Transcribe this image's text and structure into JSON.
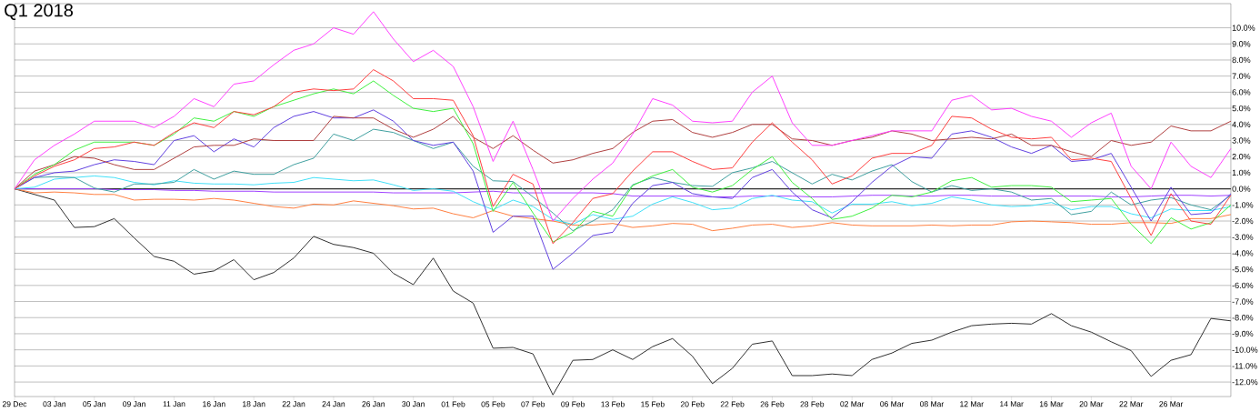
{
  "chart_data": {
    "type": "line",
    "title": "Q1 2018",
    "categories": [
      "29 Dec",
      null,
      "03 Jan",
      null,
      "05 Jan",
      null,
      "09 Jan",
      null,
      "11 Jan",
      null,
      "16 Jan",
      null,
      "18 Jan",
      null,
      "22 Jan",
      null,
      "24 Jan",
      null,
      "26 Jan",
      null,
      "30 Jan",
      null,
      "01 Feb",
      null,
      "05 Feb",
      null,
      "07 Feb",
      null,
      "09 Feb",
      null,
      "13 Feb",
      null,
      "15 Feb",
      null,
      "20 Feb",
      null,
      "22 Feb",
      null,
      "26 Feb",
      null,
      "28 Feb",
      null,
      "02 Mar",
      null,
      "06 Mar",
      null,
      "08 Mar",
      null,
      "12 Mar",
      null,
      "14 Mar",
      null,
      "16 Mar",
      null,
      "20 Mar",
      null,
      "22 Mar",
      null,
      "26 Mar",
      null,
      null,
      null
    ],
    "series": [
      {
        "color": "#303030",
        "values": [
          0,
          -0.35,
          -0.7,
          -2.4,
          -2.35,
          -1.85,
          -3.05,
          -4.2,
          -4.5,
          -5.3,
          -5.1,
          -4.4,
          -5.65,
          -5.2,
          -4.3,
          -2.95,
          -3.45,
          -3.65,
          -4.0,
          -5.25,
          -5.95,
          -4.3,
          -6.35,
          -7.1,
          -9.9,
          -9.85,
          -10.25,
          -12.8,
          -10.65,
          -10.6,
          -10.0,
          -10.6,
          -9.8,
          -9.3,
          -10.4,
          -12.1,
          -11.15,
          -9.65,
          -9.45,
          -11.6,
          -11.6,
          -11.5,
          -11.6,
          -10.6,
          -10.2,
          -9.6,
          -9.4,
          -8.9,
          -8.5,
          -8.4,
          -8.35,
          -8.4,
          -7.75,
          -8.5,
          -8.9,
          -9.5,
          -10.05,
          -11.65,
          -10.65,
          -10.3,
          -8.05,
          -8.2
        ]
      },
      {
        "color": "#ff8040",
        "values": [
          0,
          -0.25,
          -0.2,
          -0.25,
          -0.35,
          -0.35,
          -0.7,
          -0.65,
          -0.65,
          -0.7,
          -0.6,
          -0.7,
          -0.9,
          -1.1,
          -1.2,
          -0.95,
          -1.0,
          -0.75,
          -0.9,
          -1.05,
          -1.25,
          -1.2,
          -1.55,
          -1.8,
          -1.35,
          -1.7,
          -1.85,
          -2.0,
          -2.25,
          -2.25,
          -2.15,
          -2.4,
          -2.3,
          -2.15,
          -2.2,
          -2.6,
          -2.45,
          -2.25,
          -2.2,
          -2.4,
          -2.3,
          -2.1,
          -2.25,
          -2.3,
          -2.3,
          -2.3,
          -2.25,
          -2.3,
          -2.25,
          -2.25,
          -2.05,
          -2.0,
          -2.05,
          -2.1,
          -2.2,
          -2.2,
          -2.1,
          -2.1,
          -2.15,
          -1.85,
          -1.85,
          -1.6
        ]
      },
      {
        "color": "#a040ff",
        "values": [
          0,
          0,
          0,
          0,
          0,
          -0.05,
          -0.05,
          -0.05,
          -0.1,
          -0.1,
          -0.15,
          -0.15,
          -0.15,
          -0.2,
          -0.2,
          -0.2,
          -0.2,
          -0.2,
          -0.2,
          -0.25,
          -0.25,
          -0.25,
          -0.25,
          -0.2,
          -0.15,
          -0.25,
          -0.25,
          -0.25,
          -0.25,
          -0.25,
          -0.3,
          -0.45,
          -0.45,
          -0.45,
          -0.45,
          -0.5,
          -0.5,
          -0.45,
          -0.45,
          -0.45,
          -0.5,
          -0.5,
          -0.45,
          -0.4,
          -0.4,
          -0.45,
          -0.45,
          -0.4,
          -0.4,
          -0.45,
          -0.45,
          -0.45,
          -0.45,
          -0.45,
          -0.45,
          -0.5,
          -0.5,
          -0.45,
          -0.4,
          -0.4,
          -0.45,
          -0.4
        ]
      },
      {
        "color": "#40e0f8",
        "values": [
          0,
          0.1,
          0.6,
          0.7,
          0.8,
          0.7,
          0.4,
          0.25,
          0.5,
          0.35,
          0.3,
          0.3,
          0.25,
          0.35,
          0.4,
          0.7,
          0.6,
          0.5,
          0.55,
          0.25,
          -0.1,
          0.0,
          -0.15,
          -0.8,
          -1.3,
          -0.7,
          -1.1,
          -1.9,
          -2.2,
          -1.6,
          -1.9,
          -1.7,
          -0.95,
          -0.5,
          -0.85,
          -1.3,
          -1.2,
          -0.6,
          -0.4,
          -0.7,
          -0.8,
          -1.5,
          -0.95,
          -0.95,
          -0.8,
          -1.05,
          -0.9,
          -0.5,
          -0.7,
          -1.0,
          -1.1,
          -1.05,
          -0.85,
          -1.3,
          -1.1,
          -1.1,
          -1.55,
          -1.8,
          -1.25,
          -1.35,
          -1.35,
          -1.1
        ]
      },
      {
        "color": "#40a0a0",
        "values": [
          0,
          0.7,
          0.75,
          0.7,
          0.05,
          -0.2,
          0.3,
          0.3,
          0.4,
          1.2,
          0.6,
          1.1,
          0.9,
          0.9,
          1.5,
          1.9,
          3.4,
          3.0,
          3.7,
          3.5,
          3.0,
          2.5,
          2.9,
          1.4,
          0.5,
          0.45,
          -0.5,
          -1.5,
          -2.6,
          -2.0,
          -1.3,
          0.25,
          0.7,
          0.4,
          0.2,
          0.15,
          1.0,
          1.3,
          1.7,
          1.0,
          0.3,
          0.9,
          0.55,
          1.1,
          1.5,
          0.45,
          -0.2,
          0.2,
          -0.1,
          0.0,
          -0.2,
          -0.7,
          -0.6,
          -1.6,
          -1.4,
          -0.2,
          -1.0,
          -0.7,
          -0.55,
          -1.0,
          -1.3,
          -0.4
        ]
      },
      {
        "color": "#6040e0",
        "values": [
          0,
          0.7,
          1.0,
          1.1,
          1.5,
          1.8,
          1.7,
          1.5,
          3.0,
          3.3,
          2.3,
          3.1,
          2.6,
          3.8,
          4.5,
          4.8,
          4.4,
          4.4,
          4.9,
          4.2,
          3.0,
          2.7,
          2.9,
          1.1,
          -2.7,
          -1.7,
          -1.7,
          -5.0,
          -4.0,
          -2.9,
          -2.7,
          -0.9,
          0.2,
          0.4,
          -0.3,
          -0.5,
          -0.6,
          0.7,
          1.2,
          -0.2,
          -1.3,
          -1.8,
          -0.8,
          0.4,
          1.4,
          2.0,
          1.9,
          3.4,
          3.6,
          3.2,
          2.6,
          2.2,
          2.7,
          1.7,
          1.8,
          2.2,
          0.1,
          -2.0,
          0.1,
          -1.6,
          -1.5,
          -0.3
        ]
      },
      {
        "color": "#b04040",
        "values": [
          0,
          1.1,
          1.5,
          2.0,
          1.9,
          1.5,
          1.2,
          1.2,
          1.9,
          2.6,
          2.7,
          2.7,
          3.1,
          3.0,
          3.0,
          3.0,
          4.5,
          4.4,
          4.4,
          3.7,
          3.2,
          3.7,
          4.5,
          3.2,
          2.5,
          3.3,
          2.4,
          1.6,
          1.8,
          2.2,
          2.5,
          3.5,
          4.2,
          4.3,
          3.5,
          3.2,
          3.5,
          4.0,
          4.0,
          3.1,
          3.0,
          2.7,
          3.0,
          3.2,
          3.6,
          3.4,
          3.0,
          3.1,
          3.2,
          3.1,
          3.4,
          2.7,
          2.7,
          2.3,
          2.0,
          3.0,
          2.7,
          2.9,
          3.9,
          3.6,
          3.6,
          4.2
        ]
      },
      {
        "color": "#40f040",
        "values": [
          0,
          0.9,
          1.5,
          2.4,
          2.9,
          2.9,
          2.9,
          2.7,
          3.4,
          4.4,
          4.2,
          4.8,
          4.5,
          5.1,
          5.5,
          5.9,
          6.2,
          5.9,
          6.7,
          5.8,
          5.0,
          4.8,
          5.0,
          2.8,
          -1.4,
          0.4,
          -1.5,
          -3.3,
          -2.7,
          -1.4,
          -1.7,
          0.2,
          0.8,
          1.2,
          0.1,
          -0.2,
          0.2,
          1.2,
          2.0,
          0.4,
          -0.6,
          -1.9,
          -1.7,
          -1.2,
          -0.4,
          -0.5,
          -0.2,
          0.5,
          0.7,
          0.1,
          0.2,
          0.2,
          0.1,
          -0.8,
          -0.7,
          -0.6,
          -2.2,
          -3.4,
          -1.8,
          -2.5,
          -2.1,
          -1.0
        ]
      },
      {
        "color": "#ff4040",
        "values": [
          0,
          0.8,
          1.4,
          1.8,
          2.5,
          2.6,
          2.9,
          2.7,
          3.5,
          4.1,
          3.8,
          4.8,
          4.6,
          5.1,
          6.0,
          6.2,
          6.1,
          6.2,
          7.4,
          6.7,
          5.6,
          5.6,
          5.5,
          3.3,
          -1.1,
          0.9,
          0.3,
          -3.4,
          -2.1,
          -0.6,
          -0.3,
          1.1,
          2.3,
          2.3,
          1.7,
          1.2,
          1.3,
          2.9,
          4.1,
          2.9,
          1.8,
          0.3,
          0.8,
          1.9,
          2.2,
          2.2,
          2.7,
          4.5,
          4.4,
          3.7,
          3.2,
          3.1,
          3.2,
          1.8,
          1.9,
          1.7,
          -0.6,
          -2.9,
          -0.3,
          -2.0,
          -2.2,
          -0.4
        ]
      },
      {
        "color": "#ff40ff",
        "values": [
          0,
          1.8,
          2.7,
          3.4,
          4.2,
          4.2,
          4.2,
          3.8,
          4.5,
          5.6,
          5.1,
          6.5,
          6.7,
          7.7,
          8.6,
          9.0,
          10.0,
          9.6,
          11.0,
          9.3,
          7.9,
          8.6,
          7.6,
          5.1,
          1.7,
          4.2,
          1.2,
          -2.0,
          -0.6,
          0.6,
          1.6,
          3.4,
          5.6,
          5.2,
          4.2,
          4.1,
          4.2,
          6.0,
          7.0,
          4.1,
          2.7,
          2.7,
          3.0,
          3.3,
          3.6,
          3.6,
          3.6,
          5.5,
          5.8,
          4.9,
          5.0,
          4.5,
          4.2,
          3.2,
          4.1,
          4.7,
          1.4,
          0.0,
          2.9,
          1.4,
          0.7,
          2.5
        ]
      }
    ],
    "ylim": [
      -12.9,
      11.5
    ],
    "yticks": [
      {
        "value": -12,
        "label": "-12.0%"
      },
      {
        "value": -11,
        "label": "-11.0%"
      },
      {
        "value": -10,
        "label": "-10.0%"
      },
      {
        "value": -9,
        "label": "-9.0%"
      },
      {
        "value": -8,
        "label": "-8.0%"
      },
      {
        "value": -7,
        "label": "-7.0%"
      },
      {
        "value": -6,
        "label": "-6.0%"
      },
      {
        "value": -5,
        "label": "-5.0%"
      },
      {
        "value": -4,
        "label": "-4.0%"
      },
      {
        "value": -3,
        "label": "-3.0%"
      },
      {
        "value": -2,
        "label": "-2.0%"
      },
      {
        "value": -1,
        "label": "-1.0%"
      },
      {
        "value": 0,
        "label": "0.0%"
      },
      {
        "value": 1,
        "label": "1.0%"
      },
      {
        "value": 2,
        "label": "2.0%"
      },
      {
        "value": 3,
        "label": "3.0%"
      },
      {
        "value": 4,
        "label": "4.0%"
      },
      {
        "value": 5,
        "label": "5.0%"
      },
      {
        "value": 6,
        "label": "6.0%"
      },
      {
        "value": 7,
        "label": "7.0%"
      },
      {
        "value": 8,
        "label": "8.0%"
      },
      {
        "value": 9,
        "label": "9.0%"
      },
      {
        "value": 10,
        "label": "10.0%"
      }
    ],
    "grid": "y",
    "ref_lines": [
      {
        "axis": "y",
        "value": 0,
        "color": "#303030"
      }
    ]
  }
}
